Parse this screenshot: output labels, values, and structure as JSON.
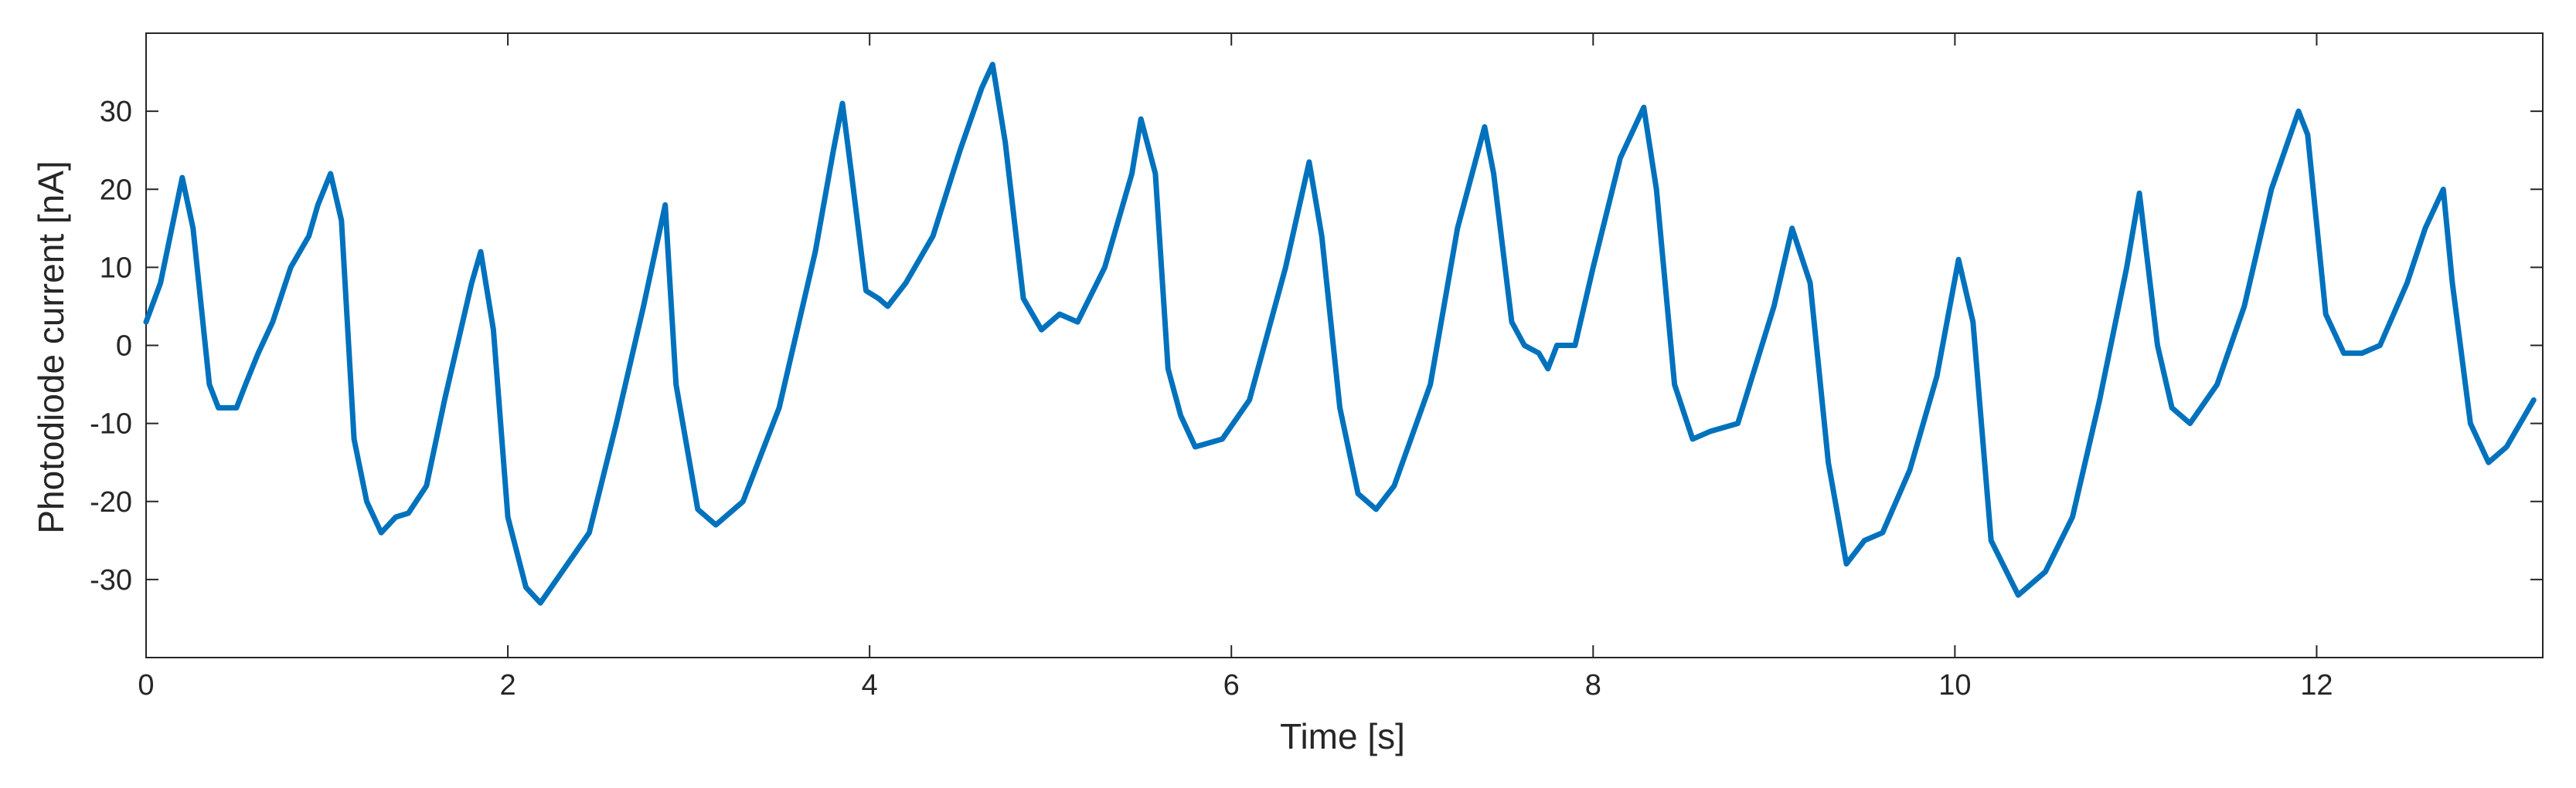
{
  "chart_data": {
    "type": "line",
    "title": "",
    "xlabel": "Time [s]",
    "ylabel": "Photodiode current [nA]",
    "xlim": [
      0,
      13.25
    ],
    "ylim": [
      -40,
      40
    ],
    "xticks": [
      0,
      2,
      4,
      6,
      8,
      10,
      12
    ],
    "yticks": [
      -30,
      -20,
      -10,
      0,
      10,
      20,
      30
    ],
    "xtick_labels": [
      "0",
      "2",
      "4",
      "6",
      "8",
      "10",
      "12"
    ],
    "ytick_labels": [
      "-30",
      "-20",
      "-10",
      "0",
      "10",
      "20",
      "30"
    ],
    "grid": false,
    "legend": "none",
    "line_color": "#0072BD",
    "series": [
      {
        "x": [
          0,
          0.08,
          0.2,
          0.26,
          0.35,
          0.4,
          0.45,
          0.5,
          0.55,
          0.62,
          0.7,
          0.8,
          0.9,
          0.95,
          1.02,
          1.08,
          1.15,
          1.22,
          1.3,
          1.38,
          1.45,
          1.55,
          1.65,
          1.8,
          1.85,
          1.92,
          2.0,
          2.1,
          2.18,
          2.3,
          2.45,
          2.6,
          2.75,
          2.87,
          2.93,
          3.05,
          3.15,
          3.3,
          3.5,
          3.7,
          3.8,
          3.85,
          3.9,
          3.98,
          4.05,
          4.1,
          4.2,
          4.35,
          4.5,
          4.62,
          4.68,
          4.75,
          4.85,
          4.95,
          5.05,
          5.15,
          5.3,
          5.45,
          5.5,
          5.58,
          5.65,
          5.72,
          5.8,
          5.95,
          6.1,
          6.3,
          6.43,
          6.5,
          6.6,
          6.7,
          6.8,
          6.9,
          7.1,
          7.25,
          7.4,
          7.45,
          7.55,
          7.62,
          7.7,
          7.75,
          7.8,
          7.9,
          8.0,
          8.15,
          8.28,
          8.35,
          8.45,
          8.55,
          8.65,
          8.8,
          9.0,
          9.1,
          9.2,
          9.3,
          9.4,
          9.5,
          9.6,
          9.75,
          9.9,
          10.02,
          10.1,
          10.2,
          10.35,
          10.5,
          10.65,
          10.8,
          10.95,
          11.02,
          11.12,
          11.2,
          11.3,
          11.45,
          11.6,
          11.75,
          11.9,
          11.95,
          12.05,
          12.15,
          12.25,
          12.35,
          12.5,
          12.6,
          12.7,
          12.75,
          12.85,
          12.95,
          13.05,
          13.2
        ],
        "y": [
          3,
          8,
          21.5,
          15,
          -5,
          -8,
          -8,
          -8,
          -5,
          -1,
          3,
          10,
          14,
          18,
          22,
          16,
          -12,
          -20,
          -24,
          -22,
          -21.5,
          -18,
          -7,
          8,
          12,
          2,
          -22,
          -31,
          -33,
          -29,
          -24,
          -10,
          5,
          18,
          -5,
          -21,
          -23,
          -20,
          -8,
          12,
          25,
          31,
          22,
          7,
          6,
          5,
          8,
          14,
          25,
          33,
          36,
          26,
          6,
          2,
          4,
          3,
          10,
          22,
          29,
          22,
          -3,
          -9,
          -13,
          -12,
          -7,
          10,
          23.5,
          14,
          -8,
          -19,
          -21,
          -18,
          -5,
          15,
          28,
          22,
          3,
          0,
          -1,
          -3,
          0,
          0,
          10,
          24,
          30.5,
          20,
          -5,
          -12,
          -11,
          -10,
          5,
          15,
          8,
          -15,
          -28,
          -25,
          -24,
          -16,
          -4,
          11,
          3,
          -25,
          -32,
          -29,
          -22,
          -7,
          10,
          19.5,
          0,
          -8,
          -10,
          -5,
          5,
          20,
          30,
          27,
          4,
          -1,
          -1,
          0,
          8,
          15,
          20,
          8,
          -10,
          -15,
          -13,
          -7
        ]
      }
    ]
  }
}
